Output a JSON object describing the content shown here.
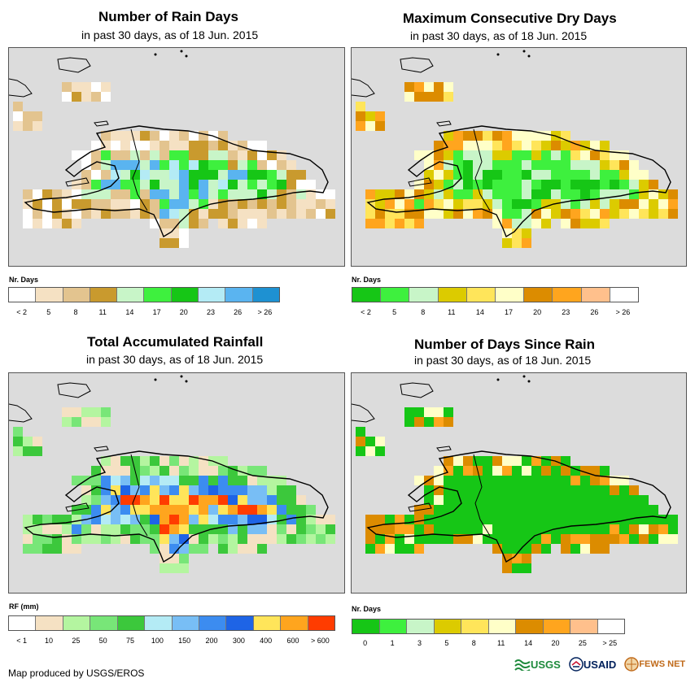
{
  "colors": {
    "ocean": "#dcdcdc",
    "coast": "#000000",
    "usgs_green": "#1e8a3c",
    "usaid_blue": "#00205b",
    "usaid_red": "#c8102e",
    "fews_orange": "#c06a1a"
  },
  "panels": [
    {
      "id": "rain-days",
      "title": "Number of Rain Days",
      "subtitle": "in past 30 days, as of 18 Jun. 2015",
      "legend_title": "Nr. Days",
      "legend_colors": [
        "#ffffff",
        "#f5e1c3",
        "#e3c48f",
        "#c99a2e",
        "#c8f5c8",
        "#3ef03e",
        "#16c616",
        "#b4ebf5",
        "#5ab4f0",
        "#1e91d2"
      ],
      "legend_labels": [
        "< 2",
        "5",
        "8",
        "11",
        "14",
        "17",
        "20",
        "23",
        "26",
        "> 26"
      ],
      "map_grid": [
        "...........WW.......................",
        "....aa.bb.................................",
        "WWWbb.....................................",
        ".a..........................................",
        "aac.........................................",
        ".ccc......................................",
        ".........cccbbcccccccc...................",
        ".........bbdfdbffffccc.c...............",
        "........abccfeggggggeecccc..............",
        "........bceeffggggeeeccbcdc.............",
        ".......bbefhihffhhhdffeeffc.............",
        "......aa.bbfeehhiiieeffeeefc............",
        "..bbbbbbbbbeeeffffieeefffecbcc...........",
        "..bbbaaabbbbbbaaeffbbeebbaaecc...........",
        "..WWbbaaaaaaaabbaaaaabbccaaaaWW..........",
        "..W.a..........baa.....W...W...W..........",
        "...............WW.......................",
        "................WW........................"
      ]
    },
    {
      "id": "dry-days",
      "title": "Maximum Consecutive Dry Days",
      "subtitle": "in past 30 days, as of 18 Jun. 2015",
      "legend_title": "Nr. Days",
      "legend_colors": [
        "#16c616",
        "#3ef03e",
        "#c8f5c8",
        "#dccb00",
        "#ffe55a",
        "#ffffc8",
        "#dc8c00",
        "#ffa51e",
        "#ffc08c",
        "#ffffff"
      ],
      "legend_labels": [
        "< 2",
        "5",
        "8",
        "11",
        "14",
        "17",
        "20",
        "23",
        "26",
        "> 26"
      ]
    },
    {
      "id": "total-rainfall",
      "title": "Total Accumulated Rainfall",
      "subtitle": "in past 30 days, as of 18 Jun. 2015",
      "legend_title": "RF (mm)",
      "legend_colors": [
        "#ffffff",
        "#f5e1c3",
        "#b4f5a0",
        "#78e678",
        "#3cc83c",
        "#b4ebf5",
        "#78bef5",
        "#3c8cf0",
        "#1e64e6",
        "#ffe55a",
        "#ffa51e",
        "#ff3c00"
      ],
      "legend_labels": [
        "< 1",
        "10",
        "25",
        "50",
        "75",
        "100",
        "150",
        "200",
        "300",
        "400",
        "600",
        "> 600"
      ]
    },
    {
      "id": "days-since-rain",
      "title": "Number of Days Since Rain",
      "subtitle": "in past 30 days, as of 18 Jun. 2015",
      "legend_title": "Nr. Days",
      "legend_colors": [
        "#16c616",
        "#3ef03e",
        "#c8f5c8",
        "#dccb00",
        "#ffe55a",
        "#ffffc8",
        "#dc8c00",
        "#ffa51e",
        "#ffc08c",
        "#ffffff"
      ],
      "legend_labels": [
        "0",
        "1",
        "3",
        "5",
        "8",
        "11",
        "14",
        "20",
        "25",
        "> 25"
      ]
    }
  ],
  "footer": {
    "credit": "Map produced by USGS/EROS",
    "logo_usgs": "USGS",
    "logo_usaid": "USAID",
    "logo_fews": "FEWS NET"
  }
}
